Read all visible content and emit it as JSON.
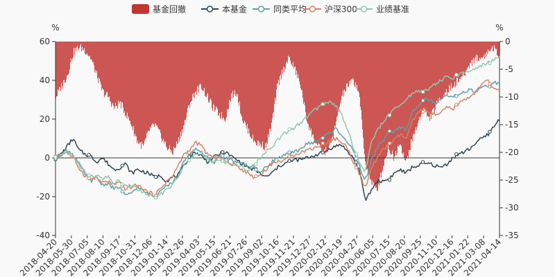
{
  "chart_data": {
    "type": "line",
    "legend_position": "top-center",
    "grid": false,
    "left_axis": {
      "unit": "%",
      "range": [
        -40,
        60
      ],
      "ticks": [
        "60",
        "40",
        "20",
        "0",
        "-20",
        "-40"
      ]
    },
    "right_axis": {
      "unit": "%",
      "range": [
        -35,
        0
      ],
      "ticks": [
        "0",
        "-5",
        "-10",
        "-15",
        "-20",
        "-25",
        "-30",
        "-35"
      ]
    },
    "x_tick_labels": [
      "2018-04-20",
      "2018-05-30",
      "2018-07-05",
      "2018-08-10",
      "2018-09-17",
      "2018-10-31",
      "2018-12-06",
      "2019-01-14",
      "2019-02-26",
      "2019-04-03",
      "2019-05-15",
      "2019-06-21",
      "2019-07-26",
      "2019-09-02",
      "2019-10-16",
      "2019-11-21",
      "2019-12-27",
      "2020-02-12",
      "2020-03-19",
      "2020-04-27",
      "2020-06-05",
      "2020-07-15",
      "2020-08-20",
      "2020-09-25",
      "2020-11-10",
      "2020-12-16",
      "2021-01-22",
      "2021-03-08",
      "2021-04-14"
    ],
    "drawdown_series": {
      "name": "基金回撤",
      "color": "#c23531",
      "axis": "right",
      "values": [
        -10,
        -8,
        -6,
        -2,
        -1,
        -1.5,
        -3,
        -6,
        -9,
        -10,
        -12,
        -11,
        -13,
        -15,
        -18,
        -19,
        -16,
        -15,
        -17,
        -19,
        -20,
        -18,
        -15,
        -11,
        -9,
        -8,
        -10,
        -12,
        -13,
        -14,
        -10,
        -9,
        -14,
        -16,
        -18,
        -18.5,
        -19,
        -15,
        -8,
        -5,
        -3,
        -5,
        -8,
        -14,
        -17,
        -19,
        -20,
        -19,
        -15,
        -10,
        -8,
        -7,
        -9,
        -21.5,
        -25,
        -27,
        -23,
        -19,
        -21,
        -18,
        -22,
        -18,
        -15,
        -12,
        -14,
        -12,
        -10,
        -9,
        -8,
        -7,
        -6,
        -4,
        -3,
        -3,
        -2,
        -1,
        -3
      ]
    },
    "series": [
      {
        "name": "本基金",
        "color": "#2f4554",
        "axis": "left",
        "values": [
          0,
          2,
          6,
          10,
          4,
          2,
          1,
          -2,
          0,
          -3,
          -6,
          -5,
          -3,
          -8,
          -6,
          -7,
          -8,
          -10,
          -9,
          -12,
          -10,
          -9,
          -4,
          1,
          3,
          1,
          -2,
          0,
          2,
          3,
          1,
          -1,
          -3,
          -5,
          -6,
          -8,
          -10,
          -8,
          -5,
          -3,
          -2,
          -1,
          -1,
          0,
          1,
          2,
          3,
          5,
          6,
          7,
          3,
          0,
          -6,
          -22,
          -17,
          -12,
          -12,
          -11,
          -8,
          -6,
          -8,
          -5,
          -4,
          -3,
          -3,
          -4,
          -5,
          -3,
          0,
          2,
          3,
          5,
          8,
          10,
          12,
          16,
          20
        ]
      },
      {
        "name": "同类平均",
        "color": "#61a0a8",
        "axis": "left",
        "values": [
          0,
          2,
          4,
          2,
          -3,
          -8,
          -12,
          -10,
          -14,
          -13,
          -16,
          -15,
          -20,
          -18,
          -15,
          -17,
          -19,
          -20,
          -16,
          -14,
          -13,
          -9,
          -2,
          2,
          5,
          3,
          0,
          -3,
          1,
          0,
          -1,
          -3,
          -2,
          -5,
          -4,
          -8,
          -5,
          -2,
          0,
          1,
          2,
          3,
          5,
          7,
          8,
          9,
          11,
          13,
          15,
          12,
          8,
          3,
          -4,
          -12,
          -2,
          5,
          9,
          13,
          14,
          16,
          14,
          23,
          27,
          31,
          30,
          28,
          30,
          32,
          31,
          33,
          34,
          35,
          34,
          36,
          37,
          39,
          38
        ]
      },
      {
        "name": "沪深300",
        "color": "#d48265",
        "axis": "left",
        "values": [
          0,
          2,
          3,
          0,
          -5,
          -9,
          -11,
          -10,
          -13,
          -12,
          -14,
          -13,
          -16,
          -15,
          -14,
          -16,
          -18,
          -19,
          -16,
          -12,
          -10,
          -4,
          2,
          4,
          8,
          6,
          2,
          0,
          1,
          -2,
          -3,
          -4,
          -6,
          -8,
          -10,
          -9,
          -6,
          -3,
          -2,
          -1,
          0,
          2,
          3,
          4,
          5,
          6,
          7,
          9,
          10,
          8,
          5,
          -2,
          -8,
          -16,
          -6,
          0,
          4,
          7,
          9,
          12,
          10,
          18,
          23,
          25,
          24,
          22,
          23,
          26,
          25,
          28,
          30,
          32,
          34,
          38,
          40,
          35,
          36
        ]
      },
      {
        "name": "业绩基准",
        "color": "#91c7ae",
        "axis": "left",
        "values": [
          0,
          2,
          3,
          1,
          -4,
          -7,
          -10,
          -9,
          -11,
          -10,
          -13,
          -12,
          -15,
          -14,
          -16,
          -18,
          -19,
          -21,
          -19,
          -16,
          -14,
          -10,
          -4,
          0,
          3,
          2,
          -1,
          -3,
          -1,
          -2,
          -3,
          -4,
          -5,
          -6,
          -4,
          0,
          3,
          6,
          9,
          12,
          14,
          16,
          18,
          21,
          24,
          26,
          28,
          29,
          27,
          22,
          15,
          5,
          -2,
          -8,
          8,
          14,
          18,
          22,
          25,
          27,
          30,
          33,
          35,
          34,
          36,
          38,
          40,
          42,
          41,
          43,
          44,
          45,
          46,
          48,
          49,
          51,
          52
        ]
      }
    ]
  }
}
